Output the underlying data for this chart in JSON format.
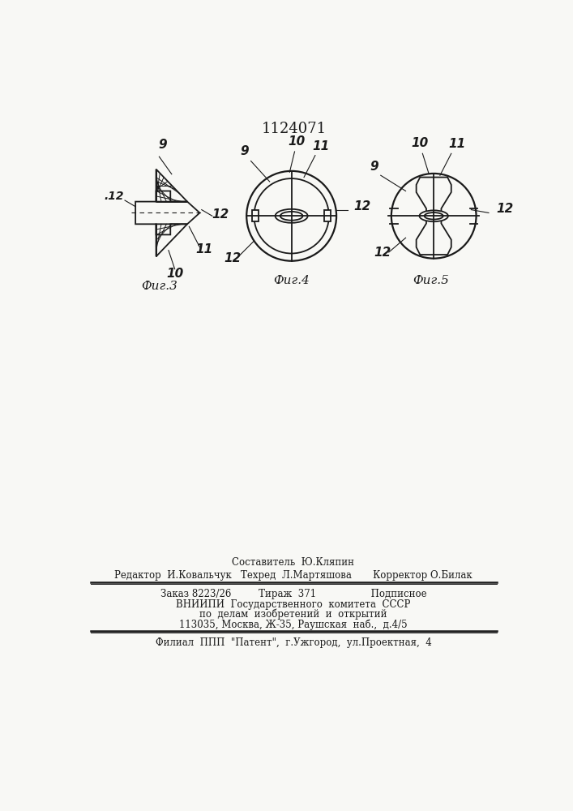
{
  "patent_number": "1124071",
  "background_color": "#f8f8f5",
  "line_color": "#1a1a1a",
  "fig3_label": "Фиг.3",
  "fig4_label": "Фиг.4",
  "fig5_label": "Фиг.5",
  "footer_line1": "Составитель  Ю.Кляпин",
  "footer_line2": "Редактор  И.Ковальчук   Техред  Л.Мартяшова       Корректор О.Билак",
  "footer_line3": "Заказ 8223/26         Тираж  371                  Подписное",
  "footer_line4": "ВНИИПИ  Государственного  комитета  СССР",
  "footer_line5": "по  делам  изобретений  и  открытий",
  "footer_line6": "113035, Москва, Ж-35, Раушская  наб.,  д.4/5",
  "footer_line7": "Филиал  ППП  \"Патент\",  г.Ужгород,  ул.Проектная,  4"
}
